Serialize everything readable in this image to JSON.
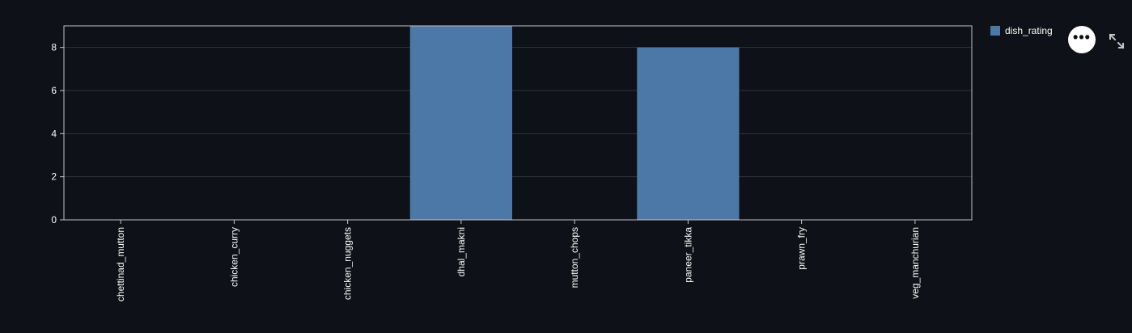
{
  "chart_data": {
    "type": "bar",
    "categories": [
      "chettinad_mutton",
      "chicken_curry",
      "chicken_nuggets",
      "dhal_makni",
      "mutton_chops",
      "paneer_tikka",
      "prawn_fry",
      "veg_manchurian"
    ],
    "series": [
      {
        "name": "dish_rating",
        "values": [
          0,
          0,
          0,
          9,
          0,
          8,
          0,
          0
        ]
      }
    ],
    "title": "",
    "xlabel": "",
    "ylabel": "",
    "ylim": [
      0,
      9
    ],
    "yticks": [
      "0",
      "2",
      "4",
      "6",
      "8"
    ],
    "grid": true,
    "legend_position": "top-right"
  },
  "colors": {
    "background": "#0e1117",
    "bar": "#4c78a8",
    "grid": "#31333f",
    "axis": "#c4c4c4",
    "text": "#fafafa"
  },
  "legend": {
    "label": "dish_rating"
  },
  "toolbar": {
    "menu_icon": "more-horizontal-icon",
    "menu_glyph": "•••",
    "expand_icon": "expand-icon"
  }
}
